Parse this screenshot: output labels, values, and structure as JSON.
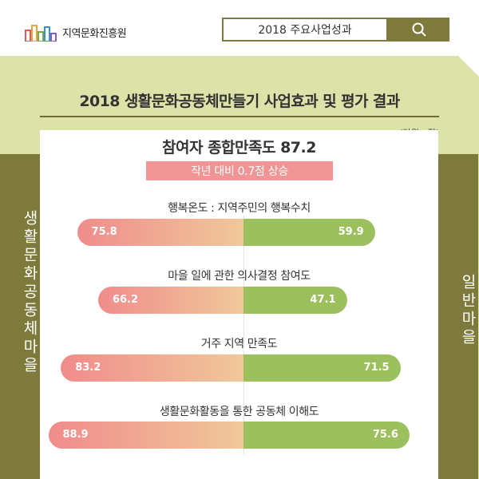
{
  "header": {
    "logo_text": "지역문화진흥원",
    "search_value": "2018 주요사업성과"
  },
  "title": "2018 생활문화공동체만들기 사업효과 및 평가 결과",
  "unit": "(단위 : 점)",
  "summary": "참여자 종합만족도 87.2",
  "rise": "작년 대비 0.7점 상승",
  "side_left": "생활문화공동체마을",
  "side_right": "일반마을",
  "colors": {
    "olive": "#7d7a3c",
    "panel": "#dde3a8",
    "pink": "#f08c8c",
    "green": "#9cc05e"
  },
  "chart_data": {
    "type": "bar",
    "orientation": "diverging-horizontal",
    "categories": [
      "행복온도 : 지역주민의 행복수치",
      "마을 일에 관한 의사결정 참여도",
      "거주 지역 만족도",
      "생활문화활동을 통한 공동체 이해도"
    ],
    "series": [
      {
        "name": "생활문화공동체마을",
        "values": [
          75.8,
          66.2,
          83.2,
          88.9
        ]
      },
      {
        "name": "일반마을",
        "values": [
          59.9,
          47.1,
          71.5,
          75.6
        ]
      }
    ]
  }
}
